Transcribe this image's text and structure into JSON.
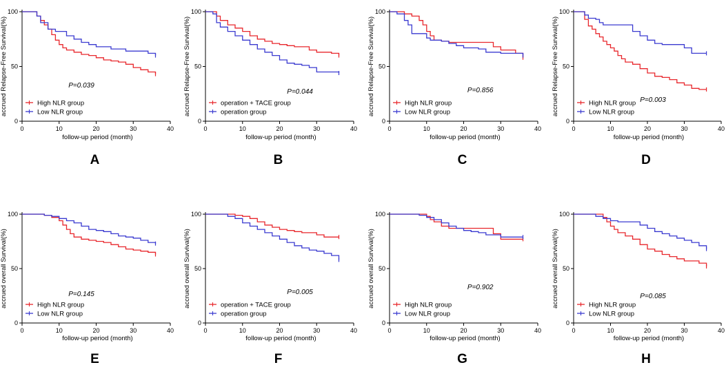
{
  "colors": {
    "high": "#e8262b",
    "low": "#3a3ad0",
    "axis": "#000000"
  },
  "chart_data": [
    {
      "type": "line",
      "label": "A",
      "ylabel": "accrued Relapse-Free Survival(%)",
      "xlabel": "follow-up period (month)",
      "xlim": [
        0,
        40
      ],
      "ylim": [
        0,
        100
      ],
      "xticks": [
        "0",
        "10",
        "20",
        "30",
        "40"
      ],
      "yticks": [
        "0",
        "50",
        "100"
      ],
      "pvalue": "P=0.039",
      "legend_pos": "bottom-left",
      "series": [
        {
          "name": "High NLR group",
          "color": "#e8262b",
          "x": [
            0,
            2,
            4,
            5,
            6,
            7,
            8,
            9,
            10,
            11,
            12,
            14,
            16,
            18,
            20,
            22,
            24,
            26,
            28,
            30,
            32,
            34,
            36
          ],
          "y": [
            100,
            100,
            96,
            92,
            88,
            84,
            79,
            74,
            70,
            67,
            65,
            63,
            61,
            60,
            58,
            56,
            55,
            54,
            52,
            49,
            47,
            45,
            43
          ]
        },
        {
          "name": "Low NLR group",
          "color": "#3a3ad0",
          "x": [
            0,
            2,
            4,
            5,
            7,
            9,
            11,
            12,
            14,
            16,
            18,
            20,
            24,
            28,
            30,
            34,
            36
          ],
          "y": [
            100,
            100,
            96,
            90,
            84,
            82,
            82,
            78,
            75,
            72,
            70,
            68,
            66,
            64,
            64,
            62,
            60
          ]
        }
      ]
    },
    {
      "type": "line",
      "label": "B",
      "ylabel": "accrued Relapse-Free Survival(%)",
      "xlabel": "follow-up period (month)",
      "xlim": [
        0,
        40
      ],
      "ylim": [
        0,
        100
      ],
      "xticks": [
        "0",
        "10",
        "20",
        "30",
        "40"
      ],
      "yticks": [
        "0",
        "50",
        "100"
      ],
      "pvalue": "P=0.044",
      "legend_pos": "bottom-left",
      "series": [
        {
          "name": "operation + TACE group",
          "color": "#e8262b",
          "x": [
            0,
            2,
            3,
            4,
            6,
            8,
            10,
            12,
            14,
            16,
            18,
            20,
            22,
            24,
            28,
            30,
            34,
            36
          ],
          "y": [
            100,
            100,
            96,
            92,
            88,
            85,
            82,
            78,
            75,
            73,
            71,
            70,
            69,
            68,
            65,
            63,
            62,
            60
          ]
        },
        {
          "name": "operation group",
          "color": "#3a3ad0",
          "x": [
            0,
            2,
            3,
            4,
            6,
            8,
            10,
            12,
            14,
            16,
            18,
            20,
            22,
            24,
            26,
            28,
            30,
            36
          ],
          "y": [
            100,
            98,
            90,
            86,
            82,
            78,
            74,
            70,
            66,
            63,
            60,
            56,
            53,
            52,
            51,
            49,
            45,
            44
          ]
        }
      ]
    },
    {
      "type": "line",
      "label": "C",
      "ylabel": "accrued Relapse-Free Survival(%)",
      "xlabel": "follow-up period (month)",
      "xlim": [
        0,
        40
      ],
      "ylim": [
        0,
        100
      ],
      "xticks": [
        "0",
        "10",
        "20",
        "30",
        "40"
      ],
      "yticks": [
        "0",
        "50",
        "100"
      ],
      "pvalue": "P=0.856",
      "legend_pos": "bottom-left",
      "series": [
        {
          "name": "High NLR group",
          "color": "#e8262b",
          "x": [
            0,
            2,
            4,
            6,
            8,
            9,
            10,
            11,
            12,
            14,
            16,
            20,
            24,
            28,
            30,
            34,
            36
          ],
          "y": [
            100,
            100,
            98,
            96,
            92,
            88,
            82,
            78,
            74,
            73,
            72,
            72,
            72,
            68,
            65,
            62,
            58
          ]
        },
        {
          "name": "Low NLR group",
          "color": "#3a3ad0",
          "x": [
            0,
            2,
            4,
            5,
            6,
            8,
            10,
            11,
            12,
            14,
            16,
            18,
            20,
            24,
            26,
            30,
            34,
            36
          ],
          "y": [
            100,
            98,
            92,
            88,
            80,
            80,
            76,
            74,
            74,
            73,
            71,
            69,
            67,
            66,
            63,
            62,
            62,
            60
          ]
        }
      ]
    },
    {
      "type": "line",
      "label": "D",
      "ylabel": "accrued Relapse-Free Survival(%)",
      "xlabel": "follow-up period (month)",
      "xlim": [
        0,
        40
      ],
      "ylim": [
        0,
        100
      ],
      "xticks": [
        "0",
        "10",
        "20",
        "30",
        "40"
      ],
      "yticks": [
        "0",
        "50",
        "100"
      ],
      "pvalue": "P=0.003",
      "legend_pos": "bottom-left",
      "series": [
        {
          "name": "High NLR group",
          "color": "#e8262b",
          "x": [
            0,
            2,
            3,
            4,
            5,
            6,
            7,
            8,
            9,
            10,
            11,
            12,
            13,
            14,
            16,
            18,
            20,
            22,
            24,
            26,
            28,
            30,
            32,
            34,
            36
          ],
          "y": [
            100,
            100,
            93,
            87,
            84,
            80,
            77,
            73,
            70,
            67,
            64,
            60,
            57,
            54,
            52,
            48,
            44,
            41,
            40,
            38,
            35,
            33,
            30,
            29,
            29
          ]
        },
        {
          "name": "Low NLR group",
          "color": "#3a3ad0",
          "x": [
            0,
            2,
            3,
            4,
            6,
            7,
            8,
            10,
            14,
            16,
            18,
            20,
            22,
            24,
            28,
            30,
            32,
            36
          ],
          "y": [
            100,
            100,
            97,
            94,
            93,
            90,
            88,
            88,
            88,
            82,
            78,
            74,
            71,
            70,
            70,
            67,
            62,
            62
          ]
        }
      ]
    },
    {
      "type": "line",
      "label": "E",
      "ylabel": "accrued overall Survival(%)",
      "xlabel": "follow-up period (month)",
      "xlim": [
        0,
        40
      ],
      "ylim": [
        0,
        100
      ],
      "xticks": [
        "0",
        "10",
        "20",
        "30",
        "40"
      ],
      "yticks": [
        "0",
        "50",
        "100"
      ],
      "pvalue": "P=0.145",
      "legend_pos": "bottom-left",
      "series": [
        {
          "name": "High NLR group",
          "color": "#e8262b",
          "x": [
            0,
            4,
            6,
            8,
            10,
            11,
            12,
            13,
            14,
            16,
            18,
            20,
            22,
            24,
            26,
            28,
            30,
            32,
            34,
            36
          ],
          "y": [
            100,
            100,
            99,
            97,
            94,
            90,
            86,
            82,
            79,
            77,
            76,
            75,
            74,
            72,
            70,
            68,
            67,
            66,
            65,
            63
          ]
        },
        {
          "name": "Low NLR group",
          "color": "#3a3ad0",
          "x": [
            0,
            4,
            6,
            8,
            10,
            12,
            14,
            16,
            18,
            20,
            22,
            24,
            26,
            28,
            30,
            32,
            34,
            36
          ],
          "y": [
            100,
            100,
            99,
            98,
            96,
            94,
            92,
            89,
            86,
            85,
            84,
            82,
            80,
            79,
            78,
            76,
            74,
            73
          ]
        }
      ]
    },
    {
      "type": "line",
      "label": "F",
      "ylabel": "accrued overall Survival(%)",
      "xlabel": "follow-up period (month)",
      "xlim": [
        0,
        40
      ],
      "ylim": [
        0,
        100
      ],
      "xticks": [
        "0",
        "10",
        "20",
        "30",
        "40"
      ],
      "yticks": [
        "0",
        "50",
        "100"
      ],
      "pvalue": "P=0.005",
      "legend_pos": "bottom-left",
      "series": [
        {
          "name": "operation + TACE group",
          "color": "#e8262b",
          "x": [
            0,
            6,
            8,
            10,
            12,
            14,
            16,
            18,
            20,
            22,
            24,
            26,
            28,
            30,
            32,
            36
          ],
          "y": [
            100,
            100,
            99,
            98,
            96,
            93,
            90,
            88,
            86,
            85,
            84,
            83,
            83,
            81,
            79,
            79
          ]
        },
        {
          "name": "operation group",
          "color": "#3a3ad0",
          "x": [
            0,
            4,
            6,
            8,
            10,
            12,
            14,
            16,
            18,
            20,
            22,
            24,
            26,
            28,
            30,
            32,
            34,
            36
          ],
          "y": [
            100,
            100,
            98,
            96,
            92,
            89,
            86,
            83,
            80,
            77,
            74,
            71,
            69,
            67,
            66,
            64,
            62,
            58
          ]
        }
      ]
    },
    {
      "type": "line",
      "label": "G",
      "ylabel": "accrued overall Survival(%)",
      "xlabel": "follow-up period (month)",
      "xlim": [
        0,
        40
      ],
      "ylim": [
        0,
        100
      ],
      "xticks": [
        "0",
        "10",
        "20",
        "30",
        "40"
      ],
      "yticks": [
        "0",
        "50",
        "100"
      ],
      "pvalue": "P=0.902",
      "legend_pos": "bottom-left",
      "series": [
        {
          "name": "High NLR group",
          "color": "#e8262b",
          "x": [
            0,
            8,
            10,
            11,
            12,
            14,
            16,
            18,
            20,
            24,
            28,
            30,
            36
          ],
          "y": [
            100,
            100,
            98,
            95,
            93,
            89,
            87,
            87,
            87,
            87,
            82,
            77,
            77
          ]
        },
        {
          "name": "Low NLR group",
          "color": "#3a3ad0",
          "x": [
            0,
            8,
            10,
            12,
            14,
            16,
            18,
            20,
            22,
            24,
            26,
            30,
            36
          ],
          "y": [
            100,
            99,
            97,
            95,
            92,
            89,
            87,
            85,
            84,
            83,
            81,
            79,
            79
          ]
        }
      ]
    },
    {
      "type": "line",
      "label": "H",
      "ylabel": "accrued overall Survival(%)",
      "xlabel": "follow-up period (month)",
      "xlim": [
        0,
        40
      ],
      "ylim": [
        0,
        100
      ],
      "xticks": [
        "0",
        "10",
        "20",
        "30",
        "40"
      ],
      "yticks": [
        "0",
        "50",
        "100"
      ],
      "pvalue": "P=0.085",
      "legend_pos": "bottom-left",
      "series": [
        {
          "name": "High NLR group",
          "color": "#e8262b",
          "x": [
            0,
            6,
            8,
            9,
            10,
            11,
            12,
            14,
            16,
            18,
            20,
            22,
            24,
            26,
            28,
            30,
            32,
            34,
            36
          ],
          "y": [
            100,
            100,
            97,
            93,
            89,
            86,
            83,
            80,
            77,
            72,
            68,
            66,
            63,
            61,
            59,
            57,
            57,
            55,
            52
          ]
        },
        {
          "name": "Low NLR group",
          "color": "#3a3ad0",
          "x": [
            0,
            4,
            6,
            8,
            10,
            12,
            14,
            16,
            18,
            20,
            22,
            24,
            26,
            28,
            30,
            32,
            34,
            36
          ],
          "y": [
            100,
            100,
            98,
            96,
            94,
            93,
            93,
            93,
            90,
            87,
            84,
            82,
            80,
            78,
            76,
            74,
            71,
            68
          ]
        }
      ]
    }
  ]
}
